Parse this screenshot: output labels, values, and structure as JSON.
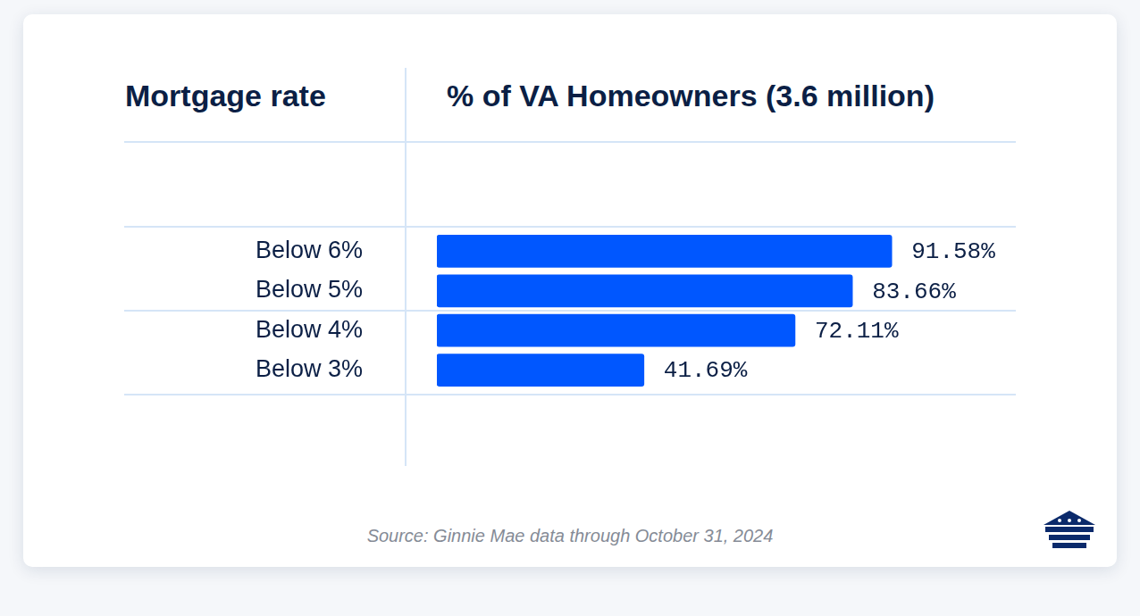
{
  "chart_data": {
    "type": "bar",
    "orientation": "horizontal",
    "y_label": "Mortgage rate",
    "x_label": "% of VA Homeowners (3.6 million)",
    "categories": [
      "Below 6%",
      "Below 5%",
      "Below 4%",
      "Below 3%"
    ],
    "values": [
      91.58,
      83.66,
      72.11,
      41.69
    ],
    "value_labels": [
      "91.58%",
      "83.66%",
      "72.11%",
      "41.69%"
    ],
    "data_labels": true,
    "color": "#0057ff",
    "xlim": [
      0,
      100
    ],
    "tick_labels": "y",
    "grid": false,
    "source": "Source: Ginnie Mae data through October 31, 2024"
  }
}
